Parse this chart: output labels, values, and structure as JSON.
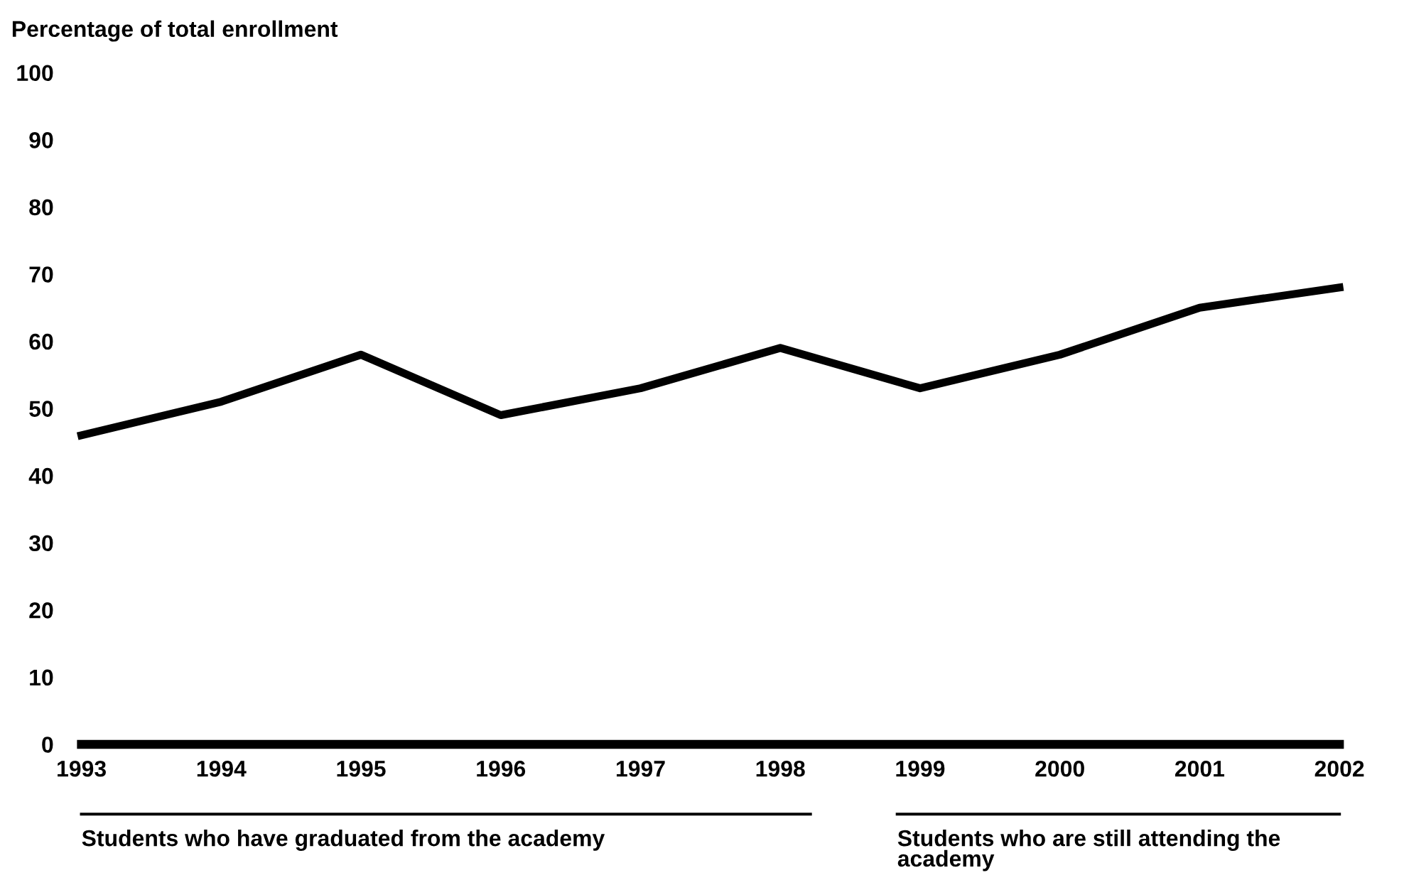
{
  "chart_data": {
    "type": "line",
    "ylabel": "Percentage of total enrollment",
    "x": [
      1993,
      1994,
      1995,
      1996,
      1997,
      1998,
      1999,
      2000,
      2001,
      2002
    ],
    "series": [
      {
        "color": "#000000",
        "values": [
          46,
          51,
          58,
          49,
          53,
          59,
          53,
          58,
          65,
          68
        ]
      }
    ],
    "xlim": [
      1993,
      2002
    ],
    "xticks": [
      1993,
      1994,
      1995,
      1996,
      1997,
      1998,
      1999,
      2000,
      2001,
      2002
    ],
    "ylim": [
      0,
      100
    ],
    "yticks": [
      0,
      10,
      20,
      30,
      40,
      50,
      60,
      70,
      80,
      90,
      100
    ],
    "grid": false,
    "legend": false,
    "marker": "none",
    "line_style": "solid",
    "annotations": [
      "Students who have graduated from the academy",
      "Students who are still attending the academy"
    ]
  }
}
